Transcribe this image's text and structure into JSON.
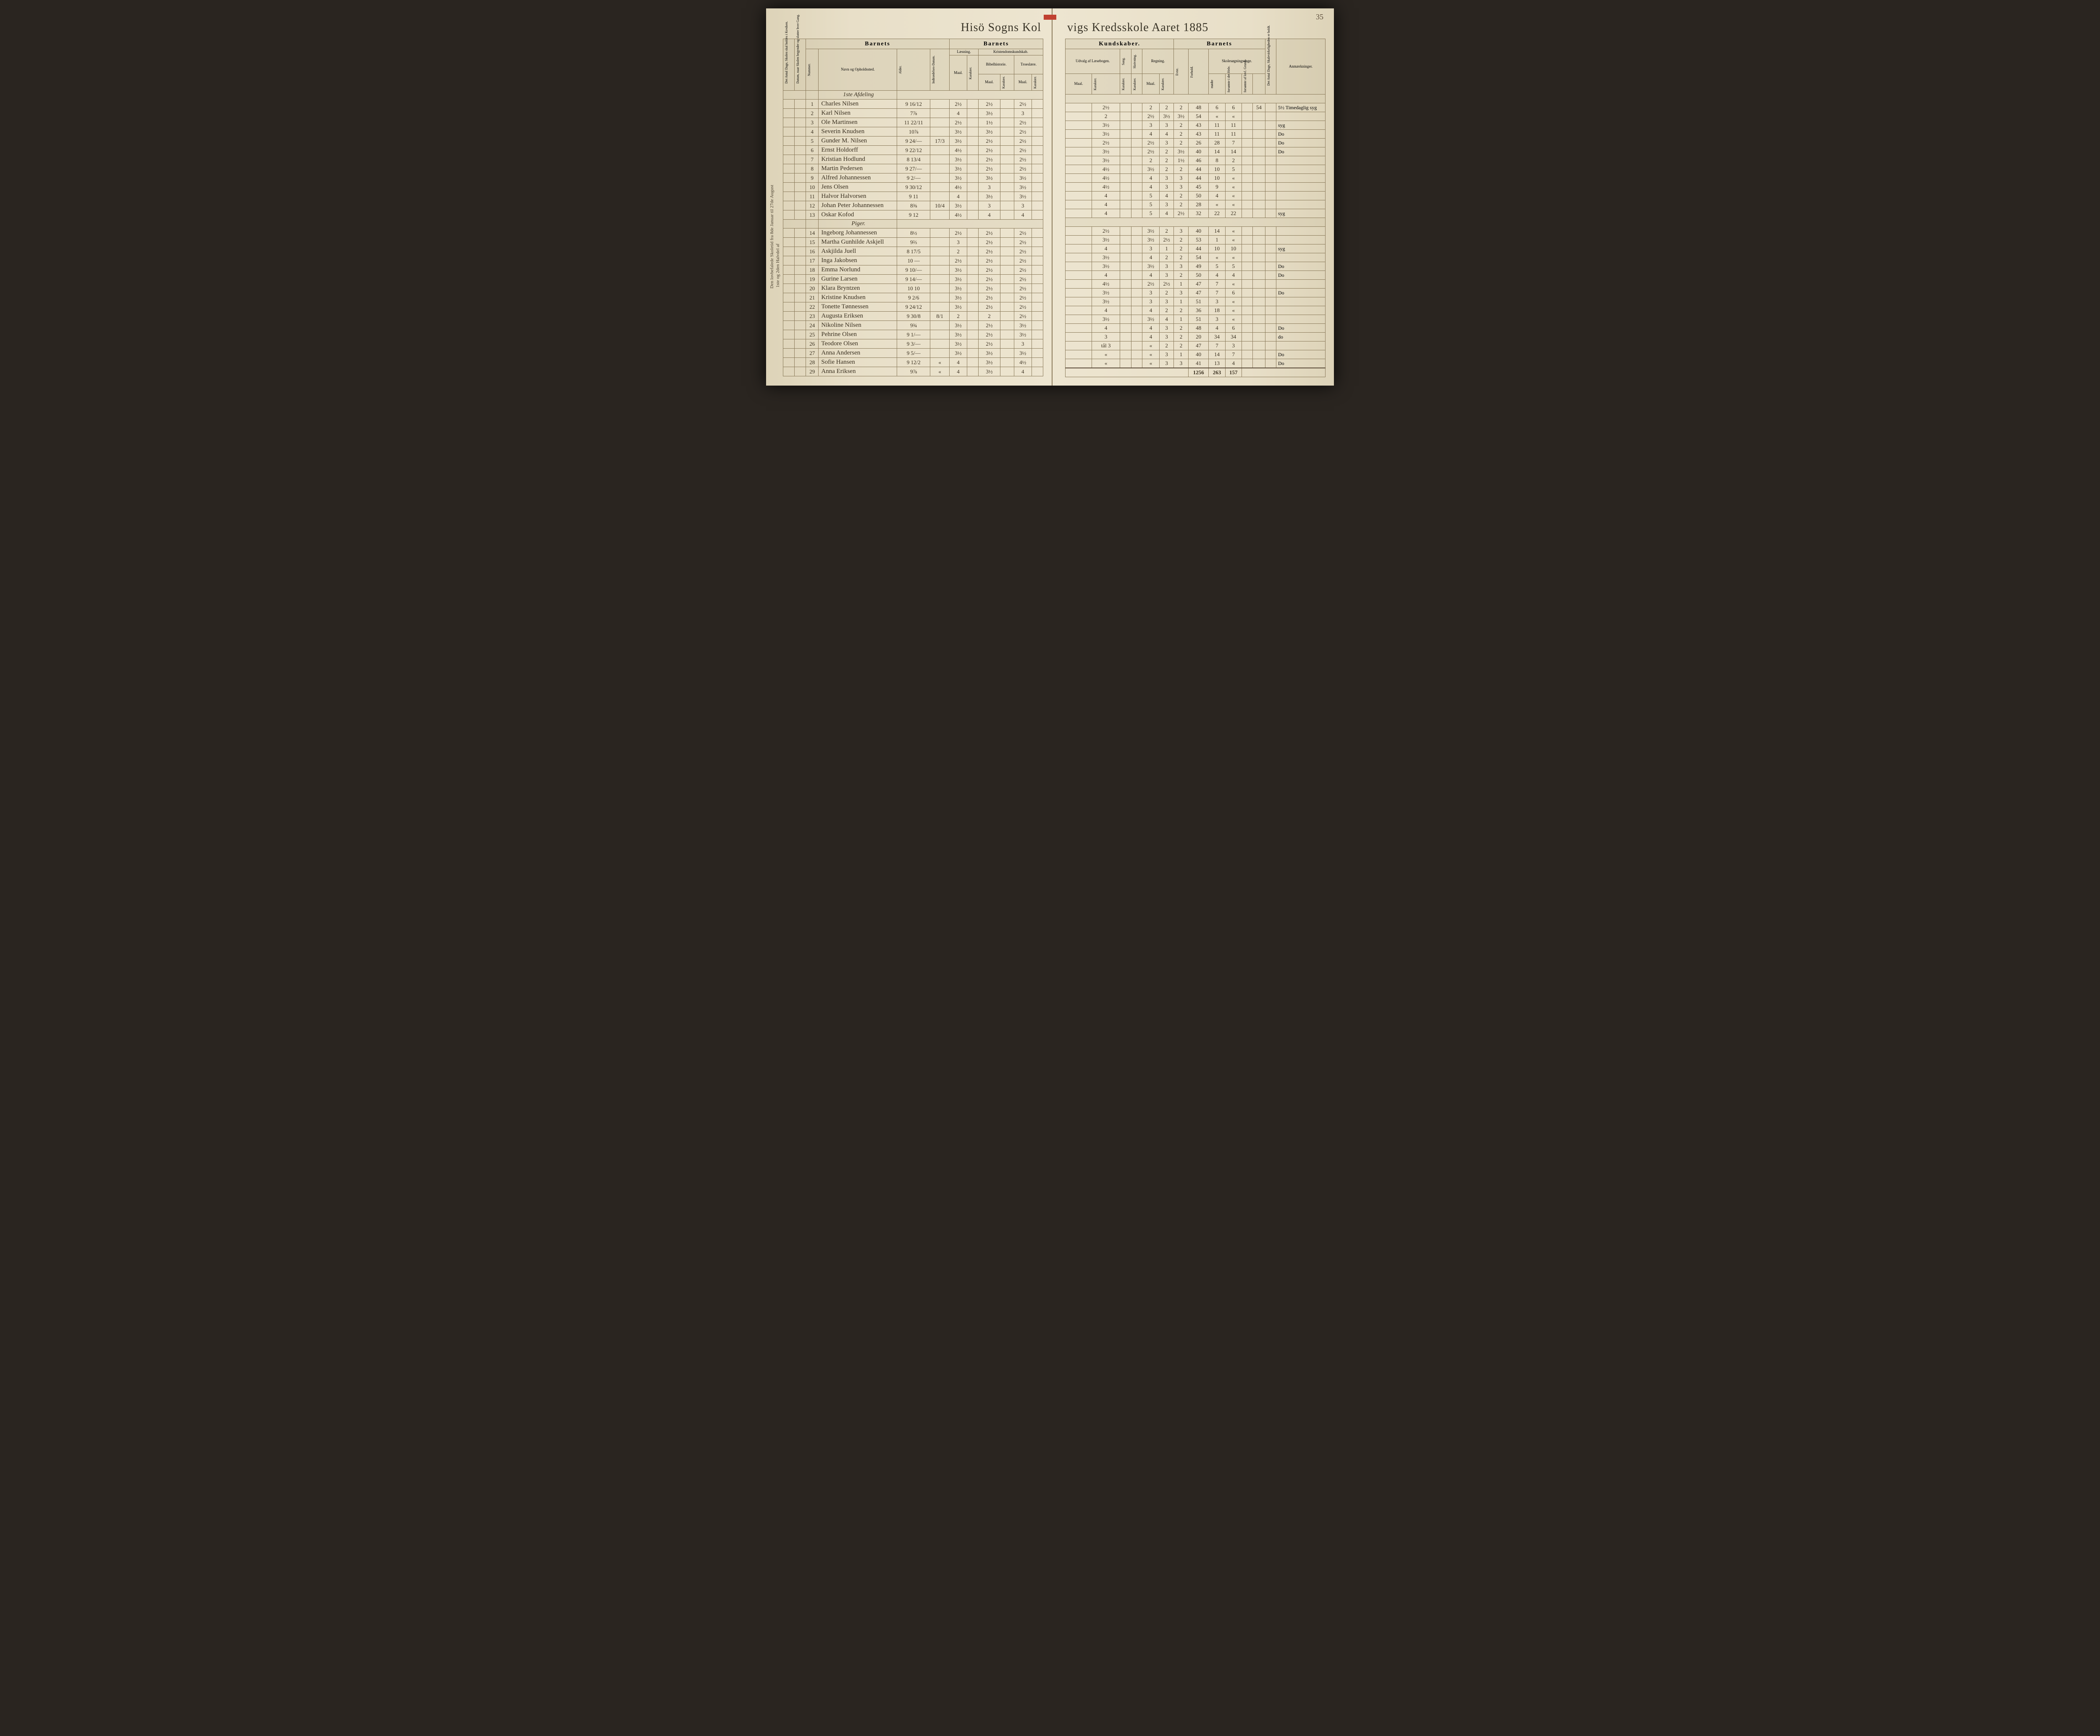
{
  "page_number": "35",
  "title_left": "Hisö Sogns Kol",
  "title_right": "vigs Kredsskole Aaret 1885",
  "spine_color": "#c04030",
  "left_margin_note": "Den lovbefalede Skoletid fra 8de Januar til 27de August",
  "left_margin_note2": "1ste og 2den Halvdel af",
  "right_vertical_note": "Addition og Subtraktion i Benævnte Tal",
  "headers": {
    "left": {
      "col1_a": "Det Antal Dage, Skolen skal holdes i Kredsen.",
      "col1_b": "Datum, naar Skolen begynder og slutter hver Gang.",
      "section1": "Barnets",
      "num": "Nummer.",
      "name": "Navn og Opholdssted.",
      "age": "Alder.",
      "entry": "Indtrædelses-Datum.",
      "section2": "Barnets",
      "reading": "Læsning.",
      "religion": "Kristendomskundskab.",
      "maal": "Maal.",
      "karakter": "Karakter.",
      "bible": "Bibelhistorie.",
      "catechism": "Troeslære."
    },
    "right": {
      "section1": "Kundskaber.",
      "excerpt": "Udvalg af Læsebogen.",
      "song": "Sang.",
      "writing": "Skrivning.",
      "arith": "Regning.",
      "section2": "Barnets",
      "ability": "Evne.",
      "conduct": "Forhold.",
      "attend": "Skolesøgningsdage.",
      "attend1": "mødte",
      "attend2": "forsømte i det Hele.",
      "attend3": "forsømte af lovl. Grund.",
      "total_days": "Det Antal Dage, Skalevirkeligheden er holdt.",
      "remarks": "Anmærkninger."
    }
  },
  "division_label": "1ste Afdeling",
  "girls_label": "Piger.",
  "rows": [
    {
      "n": "1",
      "name": "Charles Nilsen",
      "age": "9 16/12",
      "entry": "",
      "l_m": "2½",
      "l_k": "",
      "b_m": "2½",
      "b_k": "",
      "t_m": "2½",
      "u_m": "",
      "u_k": "2½",
      "sang": "",
      "skr": "",
      "r_m": "2",
      "r_k": "2",
      "ev": "2",
      "fh": "48",
      "m": "6",
      "f1": "6",
      "f2": "54",
      "rem": "5½ Timedaglig syg"
    },
    {
      "n": "2",
      "name": "Karl Nilsen",
      "age": "7⅞",
      "entry": "",
      "l_m": "4",
      "l_k": "",
      "b_m": "3½",
      "b_k": "",
      "t_m": "3",
      "u_m": "",
      "u_k": "2",
      "sang": "",
      "skr": "",
      "r_m": "2½",
      "r_k": "3½",
      "ev": "3½",
      "fh": "54",
      "m": "«",
      "f1": "«",
      "f2": "",
      "rem": ""
    },
    {
      "n": "3",
      "name": "Ole Martinsen",
      "age": "11 22/11",
      "entry": "",
      "l_m": "2½",
      "l_k": "",
      "b_m": "1½",
      "b_k": "",
      "t_m": "2½",
      "u_m": "",
      "u_k": "3½",
      "sang": "",
      "skr": "",
      "r_m": "3",
      "r_k": "3",
      "ev": "2",
      "fh": "43",
      "m": "11",
      "f1": "11",
      "f2": "",
      "rem": "syg"
    },
    {
      "n": "4",
      "name": "Severin Knudsen",
      "age": "10⅞",
      "entry": "",
      "l_m": "3½",
      "l_k": "",
      "b_m": "3½",
      "b_k": "",
      "t_m": "2½",
      "u_m": "",
      "u_k": "3½",
      "sang": "",
      "skr": "",
      "r_m": "4",
      "r_k": "4",
      "ev": "2",
      "fh": "43",
      "m": "11",
      "f1": "11",
      "f2": "",
      "rem": "Do"
    },
    {
      "n": "5",
      "name": "Gunder M. Nilsen",
      "age": "9 24/—",
      "entry": "17/3",
      "l_m": "3½",
      "l_k": "",
      "b_m": "2½",
      "b_k": "",
      "t_m": "2½",
      "u_m": "",
      "u_k": "2½",
      "sang": "",
      "skr": "",
      "r_m": "2½",
      "r_k": "3",
      "ev": "2",
      "fh": "26",
      "m": "28",
      "f1": "7",
      "f2": "",
      "rem": "Do"
    },
    {
      "n": "6",
      "name": "Ernst Holdorff",
      "age": "9 22/12",
      "entry": "",
      "l_m": "4½",
      "l_k": "",
      "b_m": "2½",
      "b_k": "",
      "t_m": "2½",
      "u_m": "",
      "u_k": "3½",
      "sang": "",
      "skr": "",
      "r_m": "2½",
      "r_k": "2",
      "ev": "3½",
      "fh": "40",
      "m": "14",
      "f1": "14",
      "f2": "",
      "rem": "Do"
    },
    {
      "n": "7",
      "name": "Kristian Hodlund",
      "age": "8 13/4",
      "entry": "",
      "l_m": "3½",
      "l_k": "",
      "b_m": "2½",
      "b_k": "",
      "t_m": "2½",
      "u_m": "",
      "u_k": "3½",
      "sang": "",
      "skr": "",
      "r_m": "2",
      "r_k": "2",
      "ev": "1½",
      "fh": "46",
      "m": "8",
      "f1": "2",
      "f2": "",
      "rem": ""
    },
    {
      "n": "8",
      "name": "Martin Pedersen",
      "age": "9 27/—",
      "entry": "",
      "l_m": "3½",
      "l_k": "",
      "b_m": "2½",
      "b_k": "",
      "t_m": "2½",
      "u_m": "",
      "u_k": "4½",
      "sang": "",
      "skr": "",
      "r_m": "3½",
      "r_k": "2",
      "ev": "2",
      "fh": "44",
      "m": "10",
      "f1": "5",
      "f2": "",
      "rem": ""
    },
    {
      "n": "9",
      "name": "Alfred Johannessen",
      "age": "9 2/—",
      "entry": "",
      "l_m": "3½",
      "l_k": "",
      "b_m": "3½",
      "b_k": "",
      "t_m": "3½",
      "u_m": "",
      "u_k": "4½",
      "sang": "",
      "skr": "",
      "r_m": "4",
      "r_k": "3",
      "ev": "3",
      "fh": "44",
      "m": "10",
      "f1": "«",
      "f2": "",
      "rem": ""
    },
    {
      "n": "10",
      "name": "Jens Olsen",
      "age": "9 30/12",
      "entry": "",
      "l_m": "4½",
      "l_k": "",
      "b_m": "3",
      "b_k": "",
      "t_m": "3½",
      "u_m": "",
      "u_k": "4½",
      "sang": "",
      "skr": "",
      "r_m": "4",
      "r_k": "3",
      "ev": "3",
      "fh": "45",
      "m": "9",
      "f1": "«",
      "f2": "",
      "rem": ""
    },
    {
      "n": "11",
      "name": "Halvor Halvorsen",
      "age": "9 11",
      "entry": "",
      "l_m": "4",
      "l_k": "",
      "b_m": "3½",
      "b_k": "",
      "t_m": "3½",
      "u_m": "",
      "u_k": "4",
      "sang": "",
      "skr": "",
      "r_m": "5",
      "r_k": "4",
      "ev": "2",
      "fh": "50",
      "m": "4",
      "f1": "«",
      "f2": "",
      "rem": ""
    },
    {
      "n": "12",
      "name": "Johan Peter Johannessen",
      "age": "8⅜",
      "entry": "10/4",
      "l_m": "3½",
      "l_k": "",
      "b_m": "3",
      "b_k": "",
      "t_m": "3",
      "u_m": "",
      "u_k": "4",
      "sang": "",
      "skr": "",
      "r_m": "5",
      "r_k": "3",
      "ev": "2",
      "fh": "28",
      "m": "«",
      "f1": "«",
      "f2": "",
      "rem": ""
    },
    {
      "n": "13",
      "name": "Oskar Kofod",
      "age": "9 12",
      "entry": "",
      "l_m": "4½",
      "l_k": "",
      "b_m": "4",
      "b_k": "",
      "t_m": "4",
      "u_m": "",
      "u_k": "4",
      "sang": "",
      "skr": "",
      "r_m": "5",
      "r_k": "4",
      "ev": "2½",
      "fh": "32",
      "m": "22",
      "f1": "22",
      "f2": "",
      "rem": "syg"
    },
    {
      "n": "14",
      "name": "Ingeborg Johannessen",
      "age": "8½",
      "entry": "",
      "l_m": "2½",
      "l_k": "",
      "b_m": "2½",
      "b_k": "",
      "t_m": "2½",
      "u_m": "",
      "u_k": "2½",
      "sang": "",
      "skr": "",
      "r_m": "3½",
      "r_k": "2",
      "ev": "3",
      "fh": "40",
      "m": "14",
      "f1": "«",
      "f2": "",
      "rem": ""
    },
    {
      "n": "15",
      "name": "Martha Gunhilde Askjell",
      "age": "9⅔",
      "entry": "",
      "l_m": "3",
      "l_k": "",
      "b_m": "2½",
      "b_k": "",
      "t_m": "2½",
      "u_m": "",
      "u_k": "3½",
      "sang": "",
      "skr": "",
      "r_m": "3½",
      "r_k": "2½",
      "ev": "2",
      "fh": "53",
      "m": "1",
      "f1": "«",
      "f2": "",
      "rem": ""
    },
    {
      "n": "16",
      "name": "Askjilda Juell",
      "age": "8 17/5",
      "entry": "",
      "l_m": "2",
      "l_k": "",
      "b_m": "2½",
      "b_k": "",
      "t_m": "2½",
      "u_m": "",
      "u_k": "4",
      "sang": "",
      "skr": "",
      "r_m": "3",
      "r_k": "1",
      "ev": "2",
      "fh": "44",
      "m": "10",
      "f1": "10",
      "f2": "",
      "rem": "syg"
    },
    {
      "n": "17",
      "name": "Inga Jakobsen",
      "age": "10 —",
      "entry": "",
      "l_m": "2½",
      "l_k": "",
      "b_m": "2½",
      "b_k": "",
      "t_m": "2½",
      "u_m": "",
      "u_k": "3½",
      "sang": "",
      "skr": "",
      "r_m": "4",
      "r_k": "2",
      "ev": "2",
      "fh": "54",
      "m": "«",
      "f1": "«",
      "f2": "",
      "rem": ""
    },
    {
      "n": "18",
      "name": "Emma Norlund",
      "age": "9 10/—",
      "entry": "",
      "l_m": "3½",
      "l_k": "",
      "b_m": "2½",
      "b_k": "",
      "t_m": "2½",
      "u_m": "",
      "u_k": "3½",
      "sang": "",
      "skr": "",
      "r_m": "3½",
      "r_k": "3",
      "ev": "3",
      "fh": "49",
      "m": "5",
      "f1": "5",
      "f2": "",
      "rem": "Do"
    },
    {
      "n": "19",
      "name": "Gurine Larsen",
      "age": "9 14/—",
      "entry": "",
      "l_m": "3½",
      "l_k": "",
      "b_m": "2½",
      "b_k": "",
      "t_m": "2½",
      "u_m": "",
      "u_k": "4",
      "sang": "",
      "skr": "",
      "r_m": "4",
      "r_k": "3",
      "ev": "2",
      "fh": "50",
      "m": "4",
      "f1": "4",
      "f2": "",
      "rem": "Do"
    },
    {
      "n": "20",
      "name": "Klara Bryntzen",
      "age": "10 10",
      "entry": "",
      "l_m": "3½",
      "l_k": "",
      "b_m": "2½",
      "b_k": "",
      "t_m": "2½",
      "u_m": "",
      "u_k": "4½",
      "sang": "",
      "skr": "",
      "r_m": "2½",
      "r_k": "2½",
      "ev": "1",
      "fh": "47",
      "m": "7",
      "f1": "«",
      "f2": "",
      "rem": ""
    },
    {
      "n": "21",
      "name": "Kristine Knudsen",
      "age": "9 2/6",
      "entry": "",
      "l_m": "3½",
      "l_k": "",
      "b_m": "2½",
      "b_k": "",
      "t_m": "2½",
      "u_m": "",
      "u_k": "3½",
      "sang": "",
      "skr": "",
      "r_m": "3",
      "r_k": "2",
      "ev": "3",
      "fh": "47",
      "m": "7",
      "f1": "6",
      "f2": "",
      "rem": "Do"
    },
    {
      "n": "22",
      "name": "Tonette Tønnessen",
      "age": "9 24/12",
      "entry": "",
      "l_m": "3½",
      "l_k": "",
      "b_m": "2½",
      "b_k": "",
      "t_m": "2½",
      "u_m": "",
      "u_k": "3½",
      "sang": "",
      "skr": "",
      "r_m": "3",
      "r_k": "3",
      "ev": "1",
      "fh": "51",
      "m": "3",
      "f1": "«",
      "f2": "",
      "rem": ""
    },
    {
      "n": "23",
      "name": "Augusta Eriksen",
      "age": "9 30/8",
      "entry": "8/1",
      "l_m": "2",
      "l_k": "",
      "b_m": "2",
      "b_k": "",
      "t_m": "2½",
      "u_m": "",
      "u_k": "4",
      "sang": "",
      "skr": "",
      "r_m": "4",
      "r_k": "2",
      "ev": "2",
      "fh": "36",
      "m": "18",
      "f1": "«",
      "f2": "",
      "rem": ""
    },
    {
      "n": "24",
      "name": "Nikoline Nilsen",
      "age": "9¾",
      "entry": "",
      "l_m": "3½",
      "l_k": "",
      "b_m": "2½",
      "b_k": "",
      "t_m": "3½",
      "u_m": "",
      "u_k": "3½",
      "sang": "",
      "skr": "",
      "r_m": "3½",
      "r_k": "4",
      "ev": "1",
      "fh": "51",
      "m": "3",
      "f1": "«",
      "f2": "",
      "rem": ""
    },
    {
      "n": "25",
      "name": "Pehrine Olsen",
      "age": "9 1/—",
      "entry": "",
      "l_m": "3½",
      "l_k": "",
      "b_m": "2½",
      "b_k": "",
      "t_m": "3½",
      "u_m": "",
      "u_k": "4",
      "sang": "",
      "skr": "",
      "r_m": "4",
      "r_k": "3",
      "ev": "2",
      "fh": "48",
      "m": "4",
      "f1": "6",
      "f2": "",
      "rem": "Do"
    },
    {
      "n": "26",
      "name": "Teodore Olsen",
      "age": "9 3/—",
      "entry": "",
      "l_m": "3½",
      "l_k": "",
      "b_m": "2½",
      "b_k": "",
      "t_m": "3",
      "u_m": "",
      "u_k": "3",
      "sang": "",
      "skr": "",
      "r_m": "4",
      "r_k": "3",
      "ev": "2",
      "fh": "20",
      "m": "34",
      "f1": "34",
      "f2": "",
      "rem": "do"
    },
    {
      "n": "27",
      "name": "Anna Andersen",
      "age": "9 5/—",
      "entry": "",
      "l_m": "3½",
      "l_k": "",
      "b_m": "3½",
      "b_k": "",
      "t_m": "3½",
      "u_m": "",
      "u_k": "tål 3",
      "sang": "",
      "skr": "",
      "r_m": "«",
      "r_k": "2",
      "ev": "2",
      "fh": "47",
      "m": "7",
      "f1": "3",
      "f2": "",
      "rem": ""
    },
    {
      "n": "28",
      "name": "Sofie Hansen",
      "age": "9 12/2",
      "entry": "«",
      "l_m": "4",
      "l_k": "",
      "b_m": "3½",
      "b_k": "",
      "t_m": "4½",
      "u_m": "",
      "u_k": "«",
      "sang": "",
      "skr": "",
      "r_m": "«",
      "r_k": "3",
      "ev": "1",
      "fh": "40",
      "m": "14",
      "f1": "7",
      "f2": "",
      "rem": "Do"
    },
    {
      "n": "29",
      "name": "Anna Eriksen",
      "age": "9⅞",
      "entry": "«",
      "l_m": "4",
      "l_k": "",
      "b_m": "3½",
      "b_k": "",
      "t_m": "4",
      "u_m": "",
      "u_k": "«",
      "sang": "",
      "skr": "",
      "r_m": "«",
      "r_k": "3",
      "ev": "3",
      "fh": "41",
      "m": "13",
      "f1": "4",
      "f2": "",
      "rem": "Do"
    }
  ],
  "totals": {
    "fh": "1256",
    "m": "263",
    "f1": "157"
  },
  "colors": {
    "paper": "#ede5d0",
    "paper_dark": "#ddd3b8",
    "ink": "#3a3020",
    "rule": "#8a7a5a",
    "background": "#2a2520"
  }
}
